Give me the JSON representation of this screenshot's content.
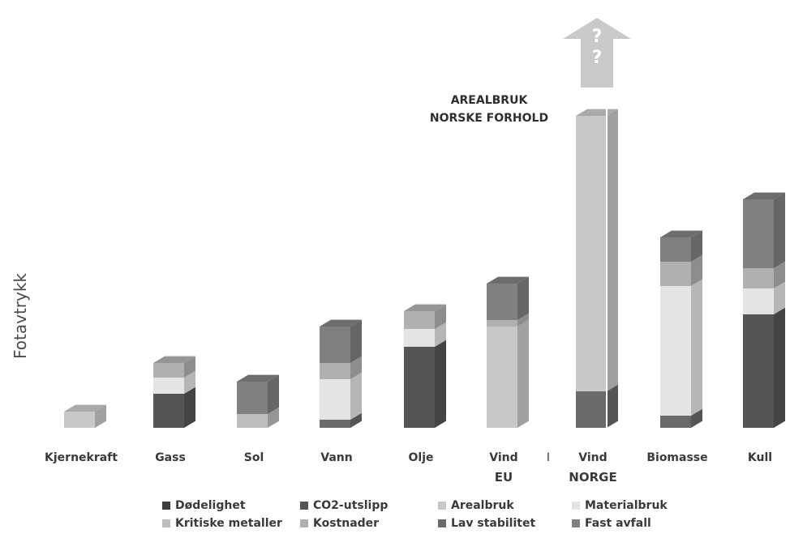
{
  "chart_data": {
    "type": "bar",
    "stacked": true,
    "ylabel": "Fotavtrykk",
    "categories": [
      "Kjernekraft",
      "Gass",
      "Sol",
      "Vann",
      "Olje",
      "Vind",
      "Vind",
      "Biomasse",
      "Kull"
    ],
    "category_sublabels": [
      "",
      "",
      "",
      "",
      "",
      "EU",
      "NORGE",
      "",
      ""
    ],
    "separator_label": "I",
    "annotation": "AREALBRUK\nNORSKE FORHOLD",
    "arrow_label": "? ?",
    "legend_placement": "bottom",
    "ylim": [
      0,
      420
    ],
    "series": [
      {
        "name": "Dødelighet",
        "color": "#3d3d3d",
        "values": [
          0,
          0,
          0,
          0,
          0,
          0,
          0,
          0,
          0
        ]
      },
      {
        "name": "CO2-utslipp",
        "color": "#555555",
        "values": [
          0,
          42,
          0,
          0,
          100,
          0,
          0,
          0,
          140
        ]
      },
      {
        "name": "Arealbruk",
        "color": "#c8c8c8",
        "values": [
          20,
          0,
          0,
          0,
          0,
          125,
          135,
          0,
          0
        ]
      },
      {
        "name": "Materialbruk",
        "color": "#e4e4e4",
        "values": [
          0,
          20,
          0,
          50,
          22,
          0,
          0,
          160,
          32
        ]
      },
      {
        "name": "Kritiske metaller",
        "color": "#bdbdbd",
        "values": [
          0,
          0,
          17,
          0,
          0,
          0,
          0,
          0,
          0
        ]
      },
      {
        "name": "Kostnader",
        "color": "#b0b0b0",
        "values": [
          0,
          18,
          0,
          20,
          22,
          8,
          0,
          30,
          25
        ]
      },
      {
        "name": "Lav stabilitet",
        "color": "#6a6a6a",
        "values": [
          0,
          0,
          0,
          10,
          0,
          0,
          45,
          15,
          0
        ]
      },
      {
        "name": "Fast avfall",
        "color": "#808080",
        "values": [
          0,
          0,
          40,
          45,
          0,
          45,
          0,
          30,
          85
        ]
      }
    ],
    "stack_order": [
      "Lav stabilitet",
      "CO2-utslipp",
      "Arealbruk",
      "Kritiske metaller",
      "Materialbruk",
      "Kostnader",
      "Fast avfall"
    ],
    "norge_extra_arealbruk": 205
  }
}
